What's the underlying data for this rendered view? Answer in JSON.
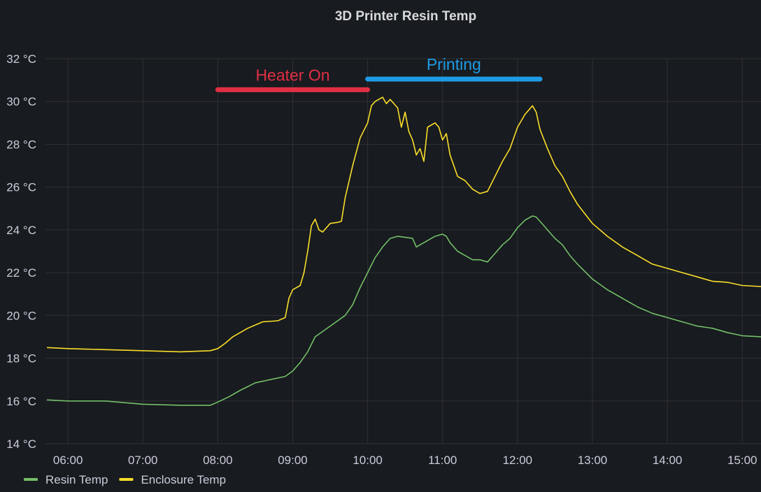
{
  "panel": {
    "title": "3D Printer Resin Temp"
  },
  "chart_data": {
    "type": "line",
    "title": "3D Printer Resin Temp",
    "xlabel": "",
    "ylabel": "",
    "x_unit": "hour of day",
    "xlim": [
      5.7,
      15.25
    ],
    "ylim": [
      14,
      32
    ],
    "x_ticks": [
      {
        "value": 6,
        "label": "06:00"
      },
      {
        "value": 7,
        "label": "07:00"
      },
      {
        "value": 8,
        "label": "08:00"
      },
      {
        "value": 9,
        "label": "09:00"
      },
      {
        "value": 10,
        "label": "10:00"
      },
      {
        "value": 11,
        "label": "11:00"
      },
      {
        "value": 12,
        "label": "12:00"
      },
      {
        "value": 13,
        "label": "13:00"
      },
      {
        "value": 14,
        "label": "14:00"
      },
      {
        "value": 15,
        "label": "15:00"
      }
    ],
    "y_ticks": [
      {
        "value": 14,
        "label": "14 °C"
      },
      {
        "value": 16,
        "label": "16 °C"
      },
      {
        "value": 18,
        "label": "18 °C"
      },
      {
        "value": 20,
        "label": "20 °C"
      },
      {
        "value": 22,
        "label": "22 °C"
      },
      {
        "value": 24,
        "label": "24 °C"
      },
      {
        "value": 26,
        "label": "26 °C"
      },
      {
        "value": 28,
        "label": "28 °C"
      },
      {
        "value": 30,
        "label": "30 °C"
      },
      {
        "value": 32,
        "label": "32 °C"
      }
    ],
    "grid": true,
    "legend_position": "bottom-left",
    "series": [
      {
        "name": "Resin Temp",
        "color": "#73bf69",
        "points": [
          [
            5.72,
            16.05
          ],
          [
            6.0,
            16.0
          ],
          [
            6.5,
            16.0
          ],
          [
            7.0,
            15.85
          ],
          [
            7.5,
            15.8
          ],
          [
            7.9,
            15.8
          ],
          [
            8.0,
            15.95
          ],
          [
            8.15,
            16.2
          ],
          [
            8.3,
            16.5
          ],
          [
            8.5,
            16.85
          ],
          [
            8.7,
            17.0
          ],
          [
            8.9,
            17.15
          ],
          [
            9.0,
            17.4
          ],
          [
            9.1,
            17.8
          ],
          [
            9.2,
            18.3
          ],
          [
            9.3,
            19.0
          ],
          [
            9.5,
            19.5
          ],
          [
            9.7,
            20.0
          ],
          [
            9.8,
            20.5
          ],
          [
            9.9,
            21.3
          ],
          [
            10.0,
            22.0
          ],
          [
            10.1,
            22.7
          ],
          [
            10.2,
            23.2
          ],
          [
            10.3,
            23.6
          ],
          [
            10.4,
            23.7
          ],
          [
            10.5,
            23.65
          ],
          [
            10.6,
            23.6
          ],
          [
            10.65,
            23.2
          ],
          [
            10.7,
            23.3
          ],
          [
            10.8,
            23.5
          ],
          [
            10.9,
            23.7
          ],
          [
            11.0,
            23.8
          ],
          [
            11.05,
            23.7
          ],
          [
            11.1,
            23.4
          ],
          [
            11.2,
            23.0
          ],
          [
            11.3,
            22.8
          ],
          [
            11.4,
            22.6
          ],
          [
            11.5,
            22.6
          ],
          [
            11.6,
            22.5
          ],
          [
            11.7,
            22.9
          ],
          [
            11.8,
            23.3
          ],
          [
            11.9,
            23.6
          ],
          [
            12.0,
            24.1
          ],
          [
            12.1,
            24.45
          ],
          [
            12.2,
            24.65
          ],
          [
            12.25,
            24.6
          ],
          [
            12.3,
            24.4
          ],
          [
            12.4,
            24.0
          ],
          [
            12.5,
            23.6
          ],
          [
            12.6,
            23.3
          ],
          [
            12.7,
            22.8
          ],
          [
            12.8,
            22.4
          ],
          [
            13.0,
            21.7
          ],
          [
            13.2,
            21.2
          ],
          [
            13.4,
            20.8
          ],
          [
            13.6,
            20.4
          ],
          [
            13.8,
            20.1
          ],
          [
            14.0,
            19.9
          ],
          [
            14.2,
            19.7
          ],
          [
            14.4,
            19.5
          ],
          [
            14.6,
            19.4
          ],
          [
            14.8,
            19.2
          ],
          [
            15.0,
            19.05
          ],
          [
            15.25,
            19.0
          ]
        ]
      },
      {
        "name": "Enclosure Temp",
        "color": "#fade2a",
        "points": [
          [
            5.72,
            18.5
          ],
          [
            6.0,
            18.45
          ],
          [
            6.5,
            18.4
          ],
          [
            7.0,
            18.35
          ],
          [
            7.5,
            18.3
          ],
          [
            7.9,
            18.35
          ],
          [
            8.0,
            18.45
          ],
          [
            8.1,
            18.7
          ],
          [
            8.2,
            19.0
          ],
          [
            8.4,
            19.4
          ],
          [
            8.6,
            19.7
          ],
          [
            8.8,
            19.75
          ],
          [
            8.9,
            19.9
          ],
          [
            8.95,
            20.8
          ],
          [
            9.0,
            21.2
          ],
          [
            9.1,
            21.4
          ],
          [
            9.15,
            22.0
          ],
          [
            9.2,
            23.0
          ],
          [
            9.25,
            24.2
          ],
          [
            9.3,
            24.5
          ],
          [
            9.35,
            24.0
          ],
          [
            9.4,
            23.9
          ],
          [
            9.5,
            24.3
          ],
          [
            9.6,
            24.35
          ],
          [
            9.65,
            24.4
          ],
          [
            9.7,
            25.5
          ],
          [
            9.8,
            27.0
          ],
          [
            9.9,
            28.3
          ],
          [
            10.0,
            29.0
          ],
          [
            10.05,
            29.8
          ],
          [
            10.1,
            30.0
          ],
          [
            10.2,
            30.2
          ],
          [
            10.25,
            29.9
          ],
          [
            10.3,
            30.1
          ],
          [
            10.4,
            29.7
          ],
          [
            10.45,
            28.8
          ],
          [
            10.5,
            29.5
          ],
          [
            10.55,
            28.6
          ],
          [
            10.6,
            28.2
          ],
          [
            10.65,
            27.5
          ],
          [
            10.7,
            27.8
          ],
          [
            10.75,
            27.2
          ],
          [
            10.8,
            28.8
          ],
          [
            10.9,
            29.0
          ],
          [
            10.95,
            28.8
          ],
          [
            11.0,
            28.2
          ],
          [
            11.05,
            28.5
          ],
          [
            11.1,
            27.5
          ],
          [
            11.2,
            26.5
          ],
          [
            11.3,
            26.3
          ],
          [
            11.4,
            25.9
          ],
          [
            11.5,
            25.7
          ],
          [
            11.6,
            25.8
          ],
          [
            11.7,
            26.5
          ],
          [
            11.8,
            27.2
          ],
          [
            11.9,
            27.8
          ],
          [
            12.0,
            28.8
          ],
          [
            12.1,
            29.4
          ],
          [
            12.2,
            29.8
          ],
          [
            12.25,
            29.5
          ],
          [
            12.3,
            28.7
          ],
          [
            12.4,
            27.8
          ],
          [
            12.5,
            27.0
          ],
          [
            12.6,
            26.5
          ],
          [
            12.7,
            25.8
          ],
          [
            12.8,
            25.2
          ],
          [
            13.0,
            24.3
          ],
          [
            13.2,
            23.7
          ],
          [
            13.4,
            23.2
          ],
          [
            13.6,
            22.8
          ],
          [
            13.8,
            22.4
          ],
          [
            14.0,
            22.2
          ],
          [
            14.2,
            22.0
          ],
          [
            14.4,
            21.8
          ],
          [
            14.6,
            21.6
          ],
          [
            14.8,
            21.55
          ],
          [
            15.0,
            21.4
          ],
          [
            15.25,
            21.35
          ]
        ]
      }
    ],
    "annotations": [
      {
        "text": "Heater On",
        "color": "#e02f44",
        "x_start": 8.0,
        "x_end": 10.0,
        "y": 30.55
      },
      {
        "text": "Printing",
        "color": "#1f9be5",
        "x_start": 10.0,
        "x_end": 12.3,
        "y": 31.05
      }
    ]
  }
}
